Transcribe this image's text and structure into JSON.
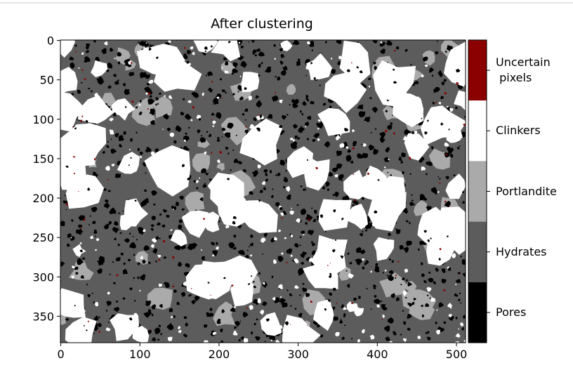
{
  "chart_data": {
    "type": "image",
    "title": "After clustering",
    "xlim": [
      -0.5,
      511.5
    ],
    "xticks": [
      0,
      100,
      200,
      300,
      400,
      500
    ],
    "ylim": [
      -0.5,
      383.5
    ],
    "yticks": [
      0,
      50,
      100,
      150,
      200,
      250,
      300,
      350
    ],
    "y_inverted": true,
    "colorbar": {
      "categories": [
        "Uncertain\n pixels",
        "Clinkers",
        "Portlandite",
        "Hydrates",
        "Pores"
      ],
      "colors": [
        "#8b0000",
        "#ffffff",
        "#aaaaaa",
        "#5c5c5c",
        "#000000"
      ]
    }
  }
}
